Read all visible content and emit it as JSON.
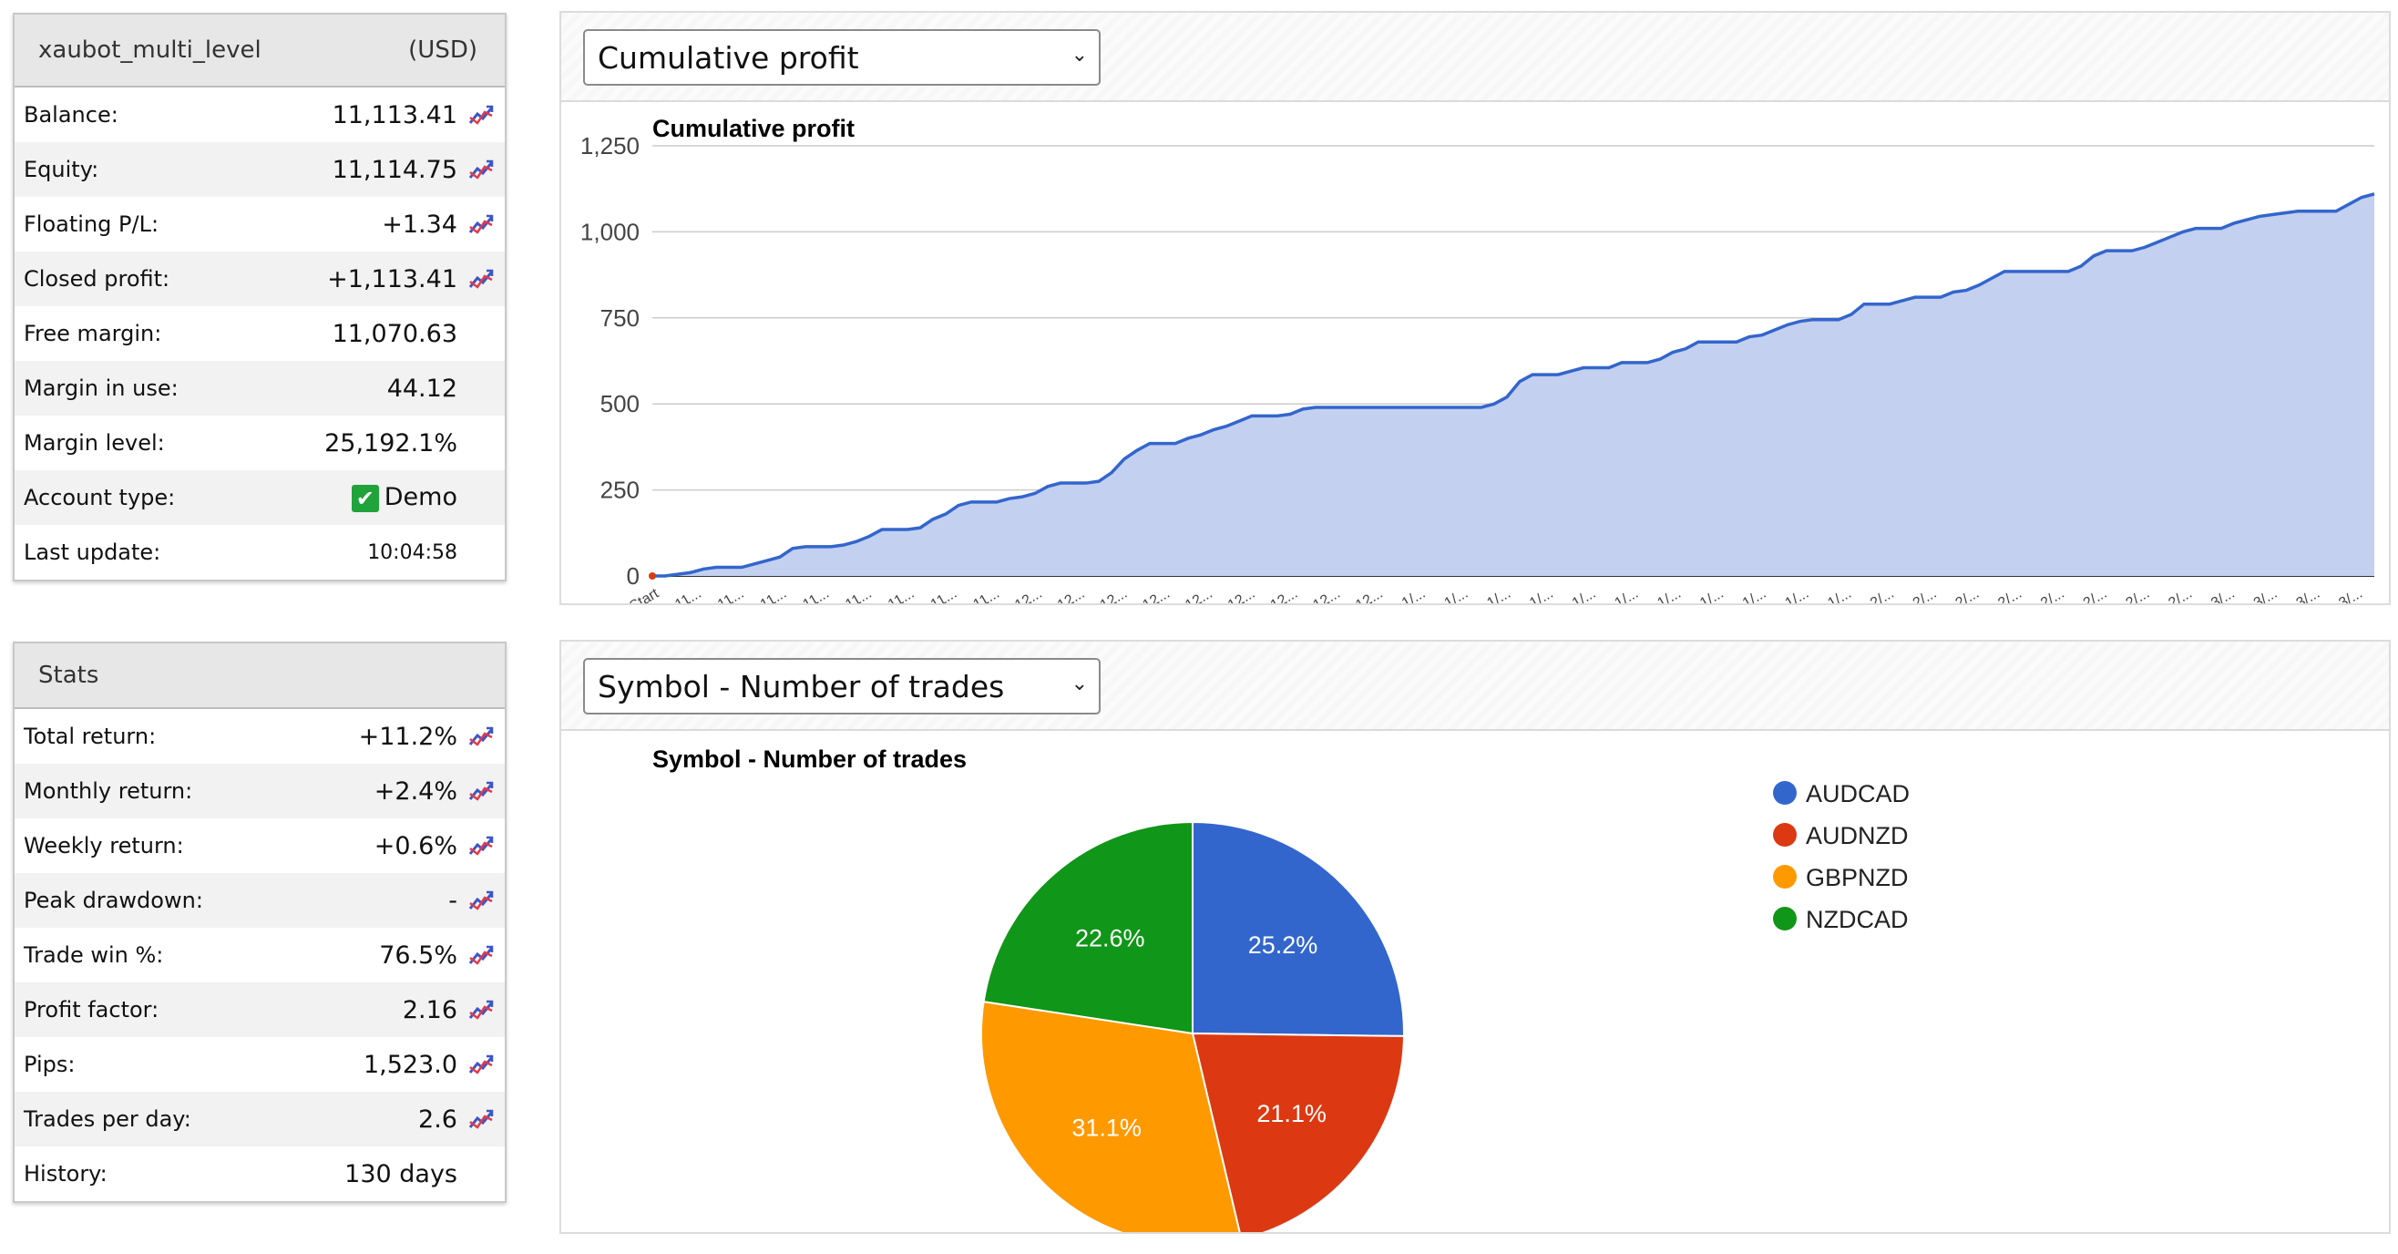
{
  "account": {
    "name": "xaubot_multi_level",
    "currency": "(USD)",
    "rows": [
      {
        "label": "Balance:",
        "value": "11,113.41",
        "icon": true
      },
      {
        "label": "Equity:",
        "value": "11,114.75",
        "icon": true
      },
      {
        "label": "Floating P/L:",
        "value": "+1.34",
        "icon": true
      },
      {
        "label": "Closed profit:",
        "value": "+1,113.41",
        "icon": true
      },
      {
        "label": "Free margin:",
        "value": "11,070.63",
        "icon": false
      },
      {
        "label": "Margin in use:",
        "value": "44.12",
        "icon": false
      },
      {
        "label": "Margin level:",
        "value": "25,192.1%",
        "icon": false
      },
      {
        "label": "Account type:",
        "value": "Demo",
        "icon": false
      },
      {
        "label": "Last update:",
        "value": "10:04:58",
        "icon": false
      }
    ]
  },
  "stats": {
    "title": "Stats",
    "rows": [
      {
        "label": "Total return:",
        "value": "+11.2%",
        "icon": true
      },
      {
        "label": "Monthly return:",
        "value": "+2.4%",
        "icon": true
      },
      {
        "label": "Weekly return:",
        "value": "+0.6%",
        "icon": true
      },
      {
        "label": "Peak drawdown:",
        "value": "-",
        "icon": true
      },
      {
        "label": "Trade win %:",
        "value": "76.5%",
        "icon": true
      },
      {
        "label": "Profit factor:",
        "value": "2.16",
        "icon": true
      },
      {
        "label": "Pips:",
        "value": "1,523.0",
        "icon": true
      },
      {
        "label": "Trades per day:",
        "value": "2.6",
        "icon": true
      },
      {
        "label": "History:",
        "value": "130 days",
        "icon": false
      }
    ]
  },
  "profit_select": {
    "value": "Cumulative profit"
  },
  "pie_select": {
    "value": "Symbol - Number of trades"
  },
  "colors": {
    "line": "#3366cc",
    "area": "#c3d0ef",
    "audcad": "#3366cc",
    "audnzd": "#dc3912",
    "gbpnzd": "#ff9900",
    "nzdcad": "#109618",
    "demo_check": "#20a33a"
  },
  "icons": {
    "stat_chart": "trend-chart-icon",
    "check": "check-icon",
    "caret": "chevron-down-icon"
  },
  "chart_data": [
    {
      "type": "area",
      "title": "Cumulative profit",
      "ylim": [
        0,
        1250
      ],
      "yticks": [
        "0",
        "250",
        "500",
        "750",
        "1,000",
        "1,250"
      ],
      "xticks": [
        "Start",
        "11...",
        "11...",
        "11...",
        "11...",
        "11...",
        "11...",
        "11...",
        "11...",
        "12...",
        "12...",
        "12...",
        "12...",
        "12...",
        "12...",
        "12...",
        "12...",
        "12...",
        "1/...",
        "1/...",
        "1/...",
        "1/...",
        "1/...",
        "1/...",
        "1/...",
        "1/...",
        "1/...",
        "1/...",
        "1/...",
        "2/...",
        "2/...",
        "2/...",
        "2/...",
        "2/...",
        "2/...",
        "2/...",
        "2/...",
        "3/...",
        "3/...",
        "3/...",
        "3/..."
      ],
      "grid": true,
      "y": [
        0,
        0,
        5,
        10,
        20,
        25,
        25,
        25,
        35,
        45,
        55,
        80,
        85,
        85,
        85,
        90,
        100,
        115,
        135,
        135,
        135,
        140,
        165,
        180,
        205,
        215,
        215,
        215,
        225,
        230,
        240,
        260,
        270,
        270,
        270,
        275,
        300,
        340,
        365,
        385,
        385,
        385,
        400,
        410,
        425,
        435,
        450,
        465,
        465,
        465,
        470,
        485,
        490,
        490,
        490,
        490,
        490,
        490,
        490,
        490,
        490,
        490,
        490,
        490,
        490,
        490,
        500,
        520,
        565,
        585,
        585,
        585,
        595,
        605,
        605,
        605,
        620,
        620,
        620,
        630,
        650,
        660,
        680,
        680,
        680,
        680,
        695,
        700,
        715,
        730,
        740,
        745,
        745,
        745,
        760,
        790,
        790,
        790,
        800,
        810,
        810,
        810,
        825,
        830,
        845,
        865,
        885,
        885,
        885,
        885,
        885,
        885,
        900,
        930,
        945,
        945,
        945,
        955,
        970,
        985,
        1000,
        1010,
        1010,
        1010,
        1025,
        1035,
        1045,
        1050,
        1055,
        1060,
        1060,
        1060,
        1060,
        1080,
        1100,
        1110
      ]
    },
    {
      "type": "pie",
      "title": "Symbol - Number of trades",
      "legend": "right",
      "slices": [
        {
          "name": "AUDCAD",
          "value": 25.2,
          "label": "25.2%"
        },
        {
          "name": "AUDNZD",
          "value": 21.1,
          "label": "21.1%"
        },
        {
          "name": "GBPNZD",
          "value": 31.1,
          "label": "31.1%"
        },
        {
          "name": "NZDCAD",
          "value": 22.6,
          "label": "22.6%"
        }
      ]
    }
  ]
}
